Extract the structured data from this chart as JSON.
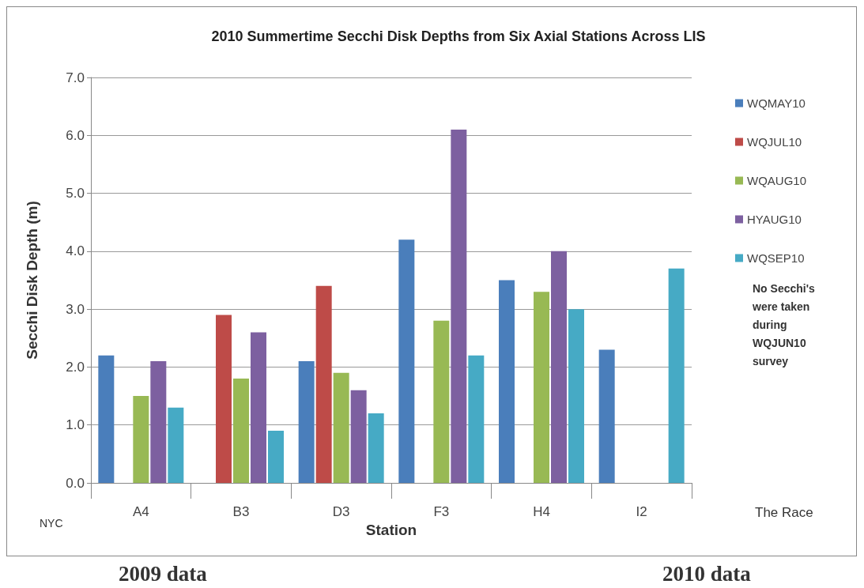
{
  "chart_data": {
    "type": "bar",
    "title": "2010 Summertime Secchi Disk Depths from Six Axial Stations Across LIS",
    "xlabel": "Station",
    "ylabel": "Secchi Disk Depth (m)",
    "categories": [
      "A4",
      "B3",
      "D3",
      "F3",
      "H4",
      "I2"
    ],
    "series": [
      {
        "name": "WQMAY10",
        "color": "#4a7ebb",
        "values": [
          2.2,
          null,
          2.1,
          4.2,
          3.5,
          2.3
        ]
      },
      {
        "name": "WQJUL10",
        "color": "#be4b48",
        "values": [
          null,
          2.9,
          3.4,
          null,
          null,
          null
        ]
      },
      {
        "name": "WQAUG10",
        "color": "#98b954",
        "values": [
          1.5,
          1.8,
          1.9,
          2.8,
          3.3,
          null
        ]
      },
      {
        "name": "HYAUG10",
        "color": "#7d60a0",
        "values": [
          2.1,
          2.6,
          1.6,
          6.1,
          4.0,
          null
        ]
      },
      {
        "name": "WQSEP10",
        "color": "#46aac5",
        "values": [
          1.3,
          0.9,
          1.2,
          2.2,
          3.0,
          3.7
        ]
      }
    ],
    "ylim": [
      0,
      7
    ],
    "yticks": [
      {
        "value": 0,
        "label": "0.0"
      },
      {
        "value": 1,
        "label": "1.0"
      },
      {
        "value": 2,
        "label": "2.0"
      },
      {
        "value": 3,
        "label": "3.0"
      },
      {
        "value": 4,
        "label": "4.0"
      },
      {
        "value": 5,
        "label": "5.0"
      },
      {
        "value": 6,
        "label": "6.0"
      },
      {
        "value": 7,
        "label": "7.0"
      }
    ],
    "grid": "y",
    "legend": "right",
    "annotations": [
      "NYC",
      "The Race",
      "No Secchi's were taken during WQJUN10 survey",
      "2009 data",
      "2010 data"
    ]
  }
}
